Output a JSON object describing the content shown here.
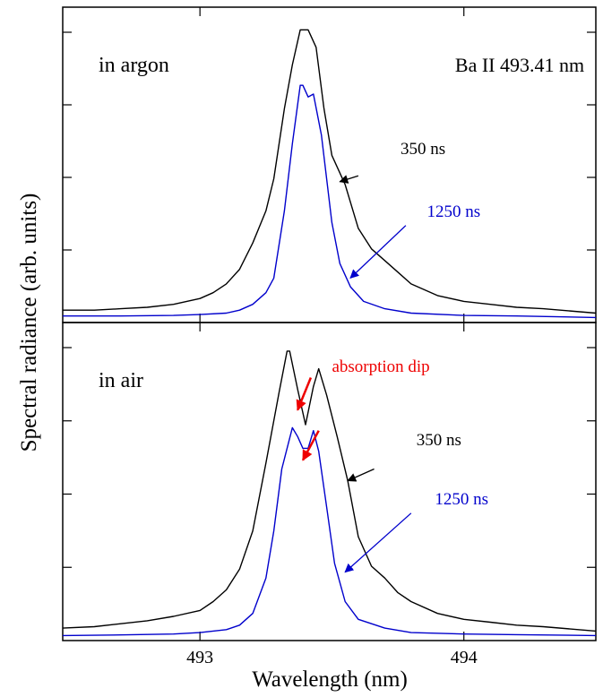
{
  "chart_data": {
    "type": "line",
    "ylabel": "Spectral radiance (arb. units)",
    "xlabel": "Wavelength (nm)",
    "xlim": [
      492.48,
      494.5
    ],
    "xticks": [
      493,
      494
    ],
    "colors": {
      "black": "#000000",
      "blue": "#0000cc",
      "red": "#ee0000",
      "axis": "#000000"
    },
    "panels": [
      {
        "id": "argon",
        "label": "in argon",
        "line_label": "Ba II 493.41 nm",
        "ylim": [
          0,
          1.0
        ],
        "series": [
          {
            "name": "350 ns",
            "color": "#000000",
            "points": [
              [
                492.48,
                0.03
              ],
              [
                492.6,
                0.03
              ],
              [
                492.7,
                0.035
              ],
              [
                492.8,
                0.04
              ],
              [
                492.9,
                0.05
              ],
              [
                493.0,
                0.07
              ],
              [
                493.05,
                0.09
              ],
              [
                493.1,
                0.12
              ],
              [
                493.15,
                0.17
              ],
              [
                493.2,
                0.26
              ],
              [
                493.25,
                0.37
              ],
              [
                493.28,
                0.48
              ],
              [
                493.32,
                0.72
              ],
              [
                493.35,
                0.87
              ],
              [
                493.38,
                0.99
              ],
              [
                493.41,
                0.99
              ],
              [
                493.44,
                0.93
              ],
              [
                493.47,
                0.72
              ],
              [
                493.5,
                0.56
              ],
              [
                493.55,
                0.46
              ],
              [
                493.6,
                0.31
              ],
              [
                493.65,
                0.24
              ],
              [
                493.7,
                0.2
              ],
              [
                493.75,
                0.16
              ],
              [
                493.8,
                0.12
              ],
              [
                493.9,
                0.08
              ],
              [
                494.0,
                0.06
              ],
              [
                494.1,
                0.05
              ],
              [
                494.2,
                0.04
              ],
              [
                494.3,
                0.035
              ],
              [
                494.5,
                0.02
              ]
            ]
          },
          {
            "name": "1250 ns",
            "color": "#0000cc",
            "points": [
              [
                492.48,
                0.01
              ],
              [
                492.7,
                0.01
              ],
              [
                492.9,
                0.012
              ],
              [
                493.0,
                0.015
              ],
              [
                493.1,
                0.02
              ],
              [
                493.15,
                0.03
              ],
              [
                493.2,
                0.05
              ],
              [
                493.25,
                0.09
              ],
              [
                493.28,
                0.14
              ],
              [
                493.32,
                0.37
              ],
              [
                493.35,
                0.6
              ],
              [
                493.38,
                0.8
              ],
              [
                493.39,
                0.8
              ],
              [
                493.41,
                0.76
              ],
              [
                493.43,
                0.77
              ],
              [
                493.46,
                0.63
              ],
              [
                493.5,
                0.33
              ],
              [
                493.53,
                0.19
              ],
              [
                493.57,
                0.11
              ],
              [
                493.62,
                0.06
              ],
              [
                493.7,
                0.035
              ],
              [
                493.8,
                0.02
              ],
              [
                494.0,
                0.012
              ],
              [
                494.2,
                0.01
              ],
              [
                494.5,
                0.005
              ]
            ]
          }
        ],
        "annotations": [
          {
            "text": "350 ns",
            "color": "#000000",
            "at": [
              493.76,
              0.565
            ],
            "arrow_from": [
              493.6,
              0.49
            ],
            "arrow_to": [
              493.53,
              0.47
            ]
          },
          {
            "text": "1250 ns",
            "color": "#0000cc",
            "at": [
              493.86,
              0.35
            ],
            "arrow_from": [
              493.78,
              0.32
            ],
            "arrow_to": [
              493.57,
              0.14
            ]
          }
        ]
      },
      {
        "id": "air",
        "label": "in air",
        "ylim": [
          0,
          1.0
        ],
        "series": [
          {
            "name": "350 ns",
            "color": "#000000",
            "points": [
              [
                492.48,
                0.03
              ],
              [
                492.6,
                0.035
              ],
              [
                492.7,
                0.045
              ],
              [
                492.8,
                0.055
              ],
              [
                492.9,
                0.07
              ],
              [
                493.0,
                0.09
              ],
              [
                493.05,
                0.12
              ],
              [
                493.1,
                0.16
              ],
              [
                493.15,
                0.23
              ],
              [
                493.2,
                0.36
              ],
              [
                493.25,
                0.59
              ],
              [
                493.3,
                0.83
              ],
              [
                493.33,
                0.97
              ],
              [
                493.34,
                0.97
              ],
              [
                493.37,
                0.84
              ],
              [
                493.4,
                0.72
              ],
              [
                493.43,
                0.85
              ],
              [
                493.45,
                0.91
              ],
              [
                493.48,
                0.82
              ],
              [
                493.52,
                0.68
              ],
              [
                493.56,
                0.53
              ],
              [
                493.6,
                0.34
              ],
              [
                493.65,
                0.24
              ],
              [
                493.7,
                0.2
              ],
              [
                493.75,
                0.15
              ],
              [
                493.8,
                0.12
              ],
              [
                493.9,
                0.08
              ],
              [
                494.0,
                0.06
              ],
              [
                494.1,
                0.05
              ],
              [
                494.2,
                0.04
              ],
              [
                494.3,
                0.035
              ],
              [
                494.5,
                0.02
              ]
            ]
          },
          {
            "name": "1250 ns",
            "color": "#0000cc",
            "points": [
              [
                492.48,
                0.005
              ],
              [
                492.7,
                0.007
              ],
              [
                492.9,
                0.01
              ],
              [
                493.0,
                0.015
              ],
              [
                493.1,
                0.025
              ],
              [
                493.15,
                0.04
              ],
              [
                493.2,
                0.08
              ],
              [
                493.25,
                0.2
              ],
              [
                493.28,
                0.36
              ],
              [
                493.31,
                0.57
              ],
              [
                493.35,
                0.71
              ],
              [
                493.37,
                0.68
              ],
              [
                493.39,
                0.64
              ],
              [
                493.41,
                0.64
              ],
              [
                493.43,
                0.7
              ],
              [
                493.45,
                0.63
              ],
              [
                493.48,
                0.44
              ],
              [
                493.51,
                0.25
              ],
              [
                493.55,
                0.12
              ],
              [
                493.6,
                0.06
              ],
              [
                493.7,
                0.03
              ],
              [
                493.8,
                0.015
              ],
              [
                494.0,
                0.01
              ],
              [
                494.2,
                0.008
              ],
              [
                494.5,
                0.005
              ]
            ]
          }
        ],
        "annotations": [
          {
            "text": "absorption dip",
            "color": "#ee0000",
            "at": [
              493.5,
              0.9
            ],
            "arrow_from": [
              493.42,
              0.88
            ],
            "arrow_to": [
              493.37,
              0.77
            ],
            "arrow2_from": [
              493.45,
              0.7
            ],
            "arrow2_to": [
              493.39,
              0.6
            ]
          },
          {
            "text": "350 ns",
            "color": "#000000",
            "at": [
              493.82,
              0.65
            ],
            "arrow_from": [
              493.66,
              0.57
            ],
            "arrow_to": [
              493.56,
              0.53
            ]
          },
          {
            "text": "1250 ns",
            "color": "#0000cc",
            "at": [
              493.89,
              0.45
            ],
            "arrow_from": [
              493.8,
              0.42
            ],
            "arrow_to": [
              493.55,
              0.22
            ]
          }
        ]
      }
    ]
  }
}
